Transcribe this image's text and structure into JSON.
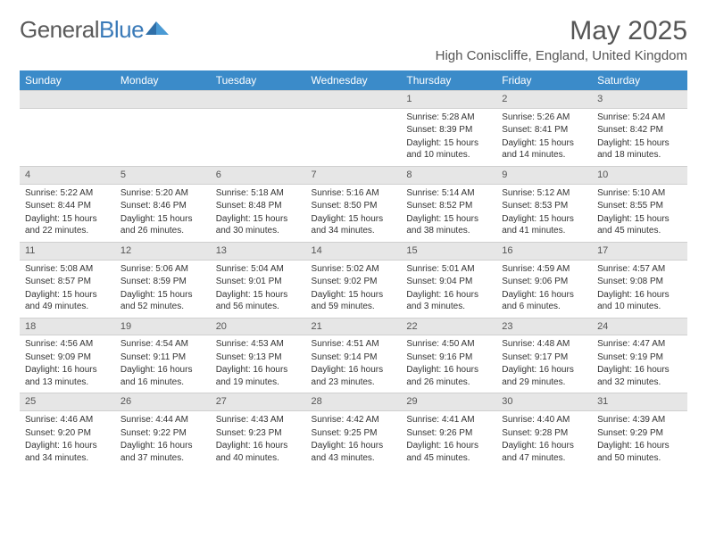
{
  "logo": {
    "text1": "General",
    "text2": "Blue"
  },
  "title": "May 2025",
  "location": "High Coniscliffe, England, United Kingdom",
  "columns": [
    "Sunday",
    "Monday",
    "Tuesday",
    "Wednesday",
    "Thursday",
    "Friday",
    "Saturday"
  ],
  "colors": {
    "header_bg": "#3b8bc9",
    "header_text": "#ffffff",
    "daynum_bg": "#e6e6e6",
    "text": "#333333",
    "logo_gray": "#5a5a5a",
    "logo_blue": "#3a7ab8"
  },
  "weeks": [
    [
      null,
      null,
      null,
      null,
      {
        "n": "1",
        "sr": "5:28 AM",
        "ss": "8:39 PM",
        "dl": "15 hours and 10 minutes."
      },
      {
        "n": "2",
        "sr": "5:26 AM",
        "ss": "8:41 PM",
        "dl": "15 hours and 14 minutes."
      },
      {
        "n": "3",
        "sr": "5:24 AM",
        "ss": "8:42 PM",
        "dl": "15 hours and 18 minutes."
      }
    ],
    [
      {
        "n": "4",
        "sr": "5:22 AM",
        "ss": "8:44 PM",
        "dl": "15 hours and 22 minutes."
      },
      {
        "n": "5",
        "sr": "5:20 AM",
        "ss": "8:46 PM",
        "dl": "15 hours and 26 minutes."
      },
      {
        "n": "6",
        "sr": "5:18 AM",
        "ss": "8:48 PM",
        "dl": "15 hours and 30 minutes."
      },
      {
        "n": "7",
        "sr": "5:16 AM",
        "ss": "8:50 PM",
        "dl": "15 hours and 34 minutes."
      },
      {
        "n": "8",
        "sr": "5:14 AM",
        "ss": "8:52 PM",
        "dl": "15 hours and 38 minutes."
      },
      {
        "n": "9",
        "sr": "5:12 AM",
        "ss": "8:53 PM",
        "dl": "15 hours and 41 minutes."
      },
      {
        "n": "10",
        "sr": "5:10 AM",
        "ss": "8:55 PM",
        "dl": "15 hours and 45 minutes."
      }
    ],
    [
      {
        "n": "11",
        "sr": "5:08 AM",
        "ss": "8:57 PM",
        "dl": "15 hours and 49 minutes."
      },
      {
        "n": "12",
        "sr": "5:06 AM",
        "ss": "8:59 PM",
        "dl": "15 hours and 52 minutes."
      },
      {
        "n": "13",
        "sr": "5:04 AM",
        "ss": "9:01 PM",
        "dl": "15 hours and 56 minutes."
      },
      {
        "n": "14",
        "sr": "5:02 AM",
        "ss": "9:02 PM",
        "dl": "15 hours and 59 minutes."
      },
      {
        "n": "15",
        "sr": "5:01 AM",
        "ss": "9:04 PM",
        "dl": "16 hours and 3 minutes."
      },
      {
        "n": "16",
        "sr": "4:59 AM",
        "ss": "9:06 PM",
        "dl": "16 hours and 6 minutes."
      },
      {
        "n": "17",
        "sr": "4:57 AM",
        "ss": "9:08 PM",
        "dl": "16 hours and 10 minutes."
      }
    ],
    [
      {
        "n": "18",
        "sr": "4:56 AM",
        "ss": "9:09 PM",
        "dl": "16 hours and 13 minutes."
      },
      {
        "n": "19",
        "sr": "4:54 AM",
        "ss": "9:11 PM",
        "dl": "16 hours and 16 minutes."
      },
      {
        "n": "20",
        "sr": "4:53 AM",
        "ss": "9:13 PM",
        "dl": "16 hours and 19 minutes."
      },
      {
        "n": "21",
        "sr": "4:51 AM",
        "ss": "9:14 PM",
        "dl": "16 hours and 23 minutes."
      },
      {
        "n": "22",
        "sr": "4:50 AM",
        "ss": "9:16 PM",
        "dl": "16 hours and 26 minutes."
      },
      {
        "n": "23",
        "sr": "4:48 AM",
        "ss": "9:17 PM",
        "dl": "16 hours and 29 minutes."
      },
      {
        "n": "24",
        "sr": "4:47 AM",
        "ss": "9:19 PM",
        "dl": "16 hours and 32 minutes."
      }
    ],
    [
      {
        "n": "25",
        "sr": "4:46 AM",
        "ss": "9:20 PM",
        "dl": "16 hours and 34 minutes."
      },
      {
        "n": "26",
        "sr": "4:44 AM",
        "ss": "9:22 PM",
        "dl": "16 hours and 37 minutes."
      },
      {
        "n": "27",
        "sr": "4:43 AM",
        "ss": "9:23 PM",
        "dl": "16 hours and 40 minutes."
      },
      {
        "n": "28",
        "sr": "4:42 AM",
        "ss": "9:25 PM",
        "dl": "16 hours and 43 minutes."
      },
      {
        "n": "29",
        "sr": "4:41 AM",
        "ss": "9:26 PM",
        "dl": "16 hours and 45 minutes."
      },
      {
        "n": "30",
        "sr": "4:40 AM",
        "ss": "9:28 PM",
        "dl": "16 hours and 47 minutes."
      },
      {
        "n": "31",
        "sr": "4:39 AM",
        "ss": "9:29 PM",
        "dl": "16 hours and 50 minutes."
      }
    ]
  ],
  "labels": {
    "sunrise": "Sunrise: ",
    "sunset": "Sunset: ",
    "daylight": "Daylight: "
  }
}
